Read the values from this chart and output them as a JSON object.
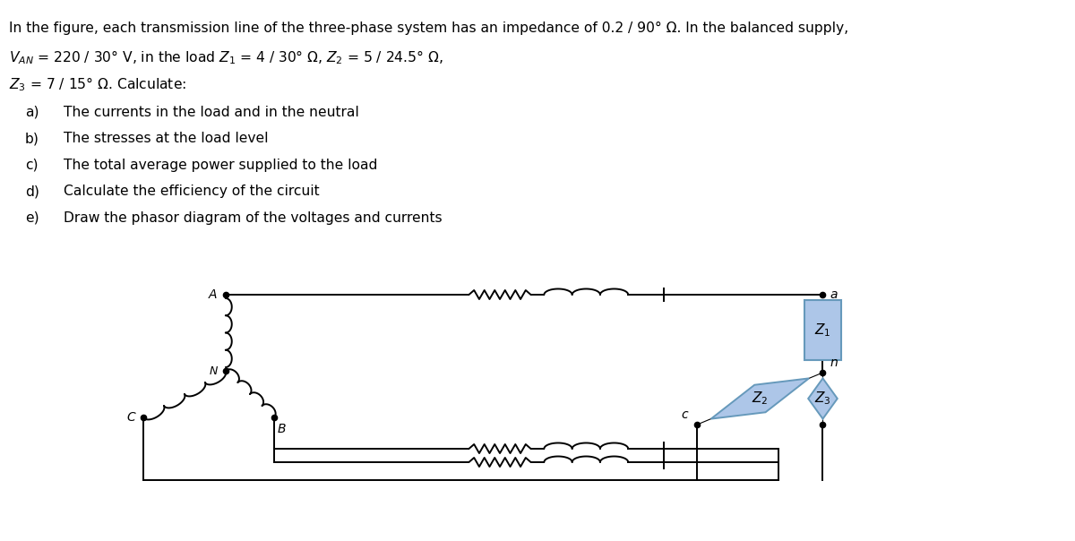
{
  "bg_color": "#ffffff",
  "line_color": "#000000",
  "z_box_fill": "#adc6e8",
  "z_box_edge": "#6699bb",
  "z_diamond_fill": "#adc6e8",
  "z_diamond_edge": "#6699bb",
  "text_fontsize": 11.2,
  "label_fontsize": 10,
  "descriptions": [
    "In the figure, each transmission line of the three-phase system has an impedance of 0.2 / 90° Ω. In the balanced supply,",
    "$V_{AN}$ = 220 / 30° V, in the load $Z_1$ = 4 / 30° Ω, $Z_2$ = 5 / 24.5° Ω,",
    "$Z_3$ = 7 / 15° Ω. Calculate:"
  ],
  "items": [
    [
      "a)",
      "The currents in the load and in the neutral"
    ],
    [
      "b)",
      "The stresses at the load level"
    ],
    [
      "c)",
      "The total average power supplied to the load"
    ],
    [
      "d)",
      "Calculate the efficiency of the circuit"
    ],
    [
      "e)",
      "Draw the phasor diagram of the voltages and currents"
    ]
  ]
}
